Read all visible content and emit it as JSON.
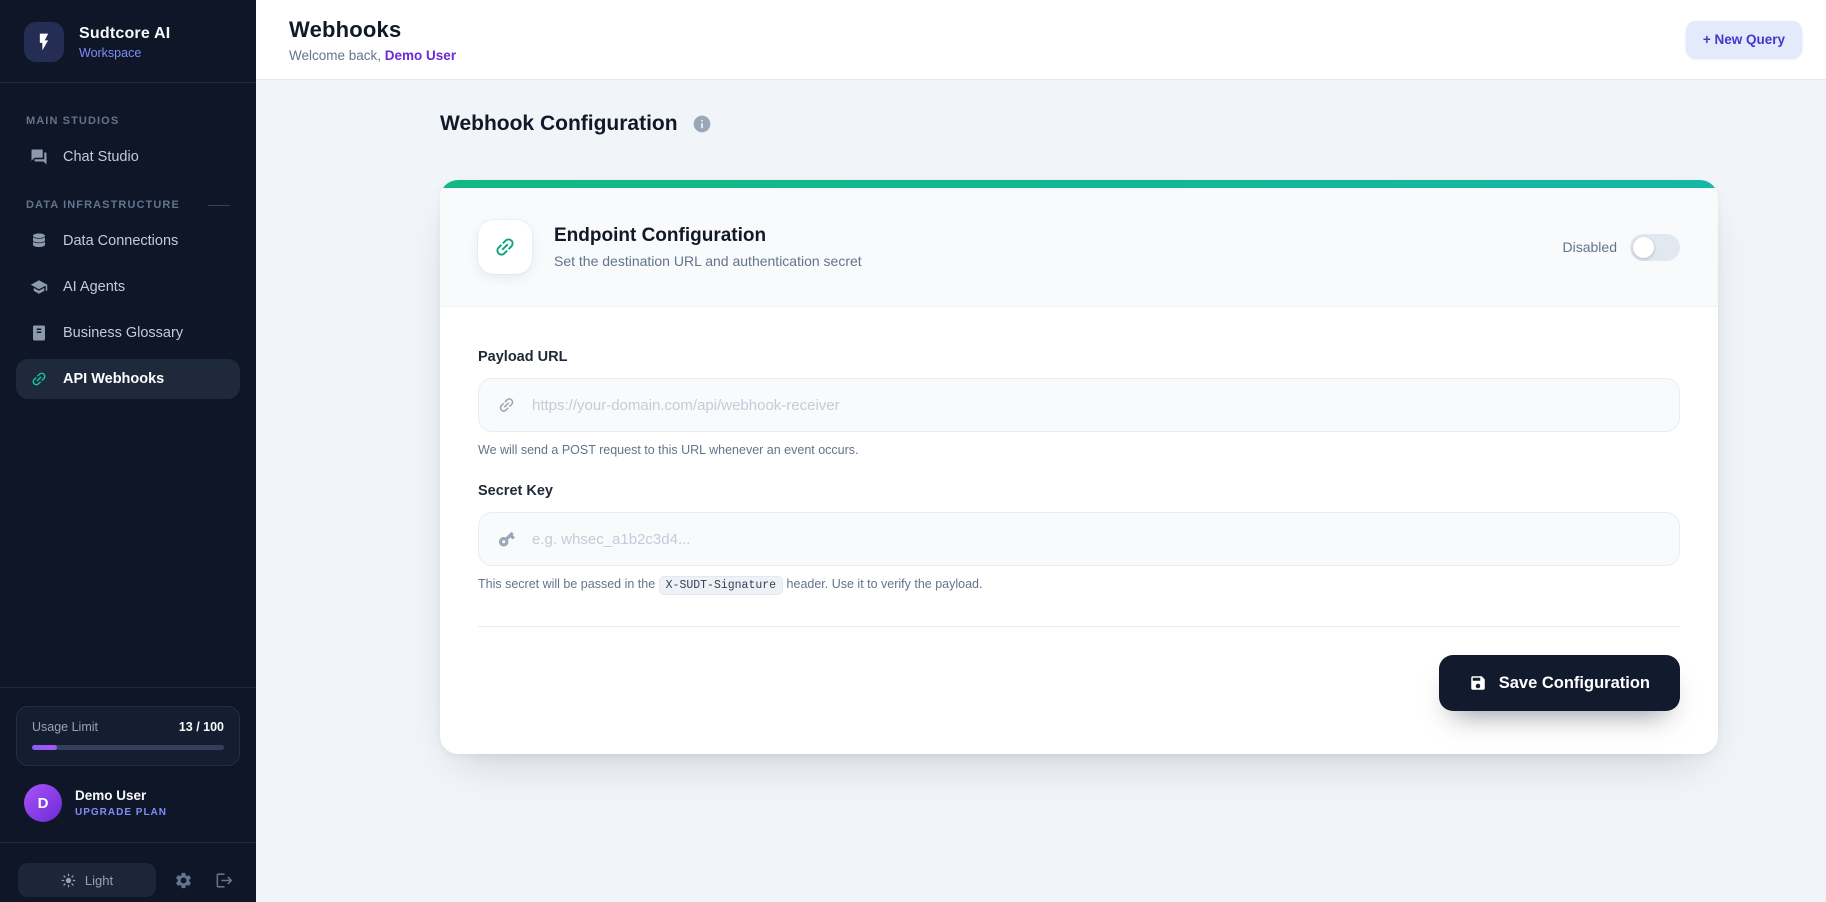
{
  "brand": {
    "name": "Sudtcore AI",
    "subtitle": "Workspace"
  },
  "sidebar": {
    "sections": [
      {
        "label": "MAIN STUDIOS",
        "items": [
          {
            "label": "Chat Studio",
            "icon": "chat-icon",
            "active": false
          }
        ]
      },
      {
        "label": "DATA INFRASTRUCTURE",
        "items": [
          {
            "label": "Data Connections",
            "icon": "database-icon",
            "active": false
          },
          {
            "label": "AI Agents",
            "icon": "graduation-cap-icon",
            "active": false
          },
          {
            "label": "Business Glossary",
            "icon": "book-icon",
            "active": false
          },
          {
            "label": "API Webhooks",
            "icon": "link-icon",
            "active": true
          }
        ]
      }
    ],
    "usage": {
      "label": "Usage Limit",
      "value": "13 / 100",
      "percent": 13
    },
    "user": {
      "initial": "D",
      "name": "Demo User",
      "plan_label": "UPGRADE PLAN"
    },
    "footer": {
      "theme_label": "Light"
    }
  },
  "header": {
    "title": "Webhooks",
    "welcome_prefix": "Welcome back, ",
    "welcome_user": "Demo User",
    "new_query_label": "+ New Query"
  },
  "main": {
    "page_title": "Webhook Configuration",
    "card": {
      "title": "Endpoint Configuration",
      "subtitle": "Set the destination URL and authentication secret",
      "toggle_label": "Disabled",
      "toggle_state": "off",
      "fields": {
        "payload_url": {
          "label": "Payload URL",
          "value": "",
          "placeholder": "https://your-domain.com/api/webhook-receiver",
          "help": "We will send a POST request to this URL whenever an event occurs."
        },
        "secret_key": {
          "label": "Secret Key",
          "value": "",
          "placeholder": "e.g. whsec_a1b2c3d4...",
          "help_prefix": "This secret will be passed in the ",
          "help_code": "X-SUDT-Signature",
          "help_suffix": " header. Use it to verify the payload."
        }
      },
      "save_label": "Save Configuration"
    }
  },
  "colors": {
    "sidebar_bg": "#0e1627",
    "accent_green": "#10b981",
    "accent_teal": "#14b8a6",
    "accent_indigo": "#6d28d9",
    "accent_purple": "#8b5cf6",
    "content_bg": "#f1f5f9"
  }
}
